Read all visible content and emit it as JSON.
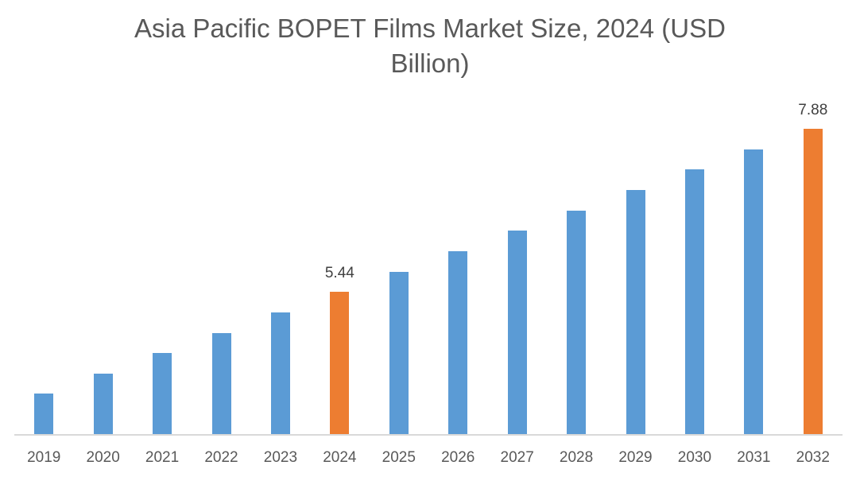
{
  "chart_data": {
    "type": "bar",
    "title": "Asia Pacific BOPET Films Market Size, 2024 (USD Billion)",
    "title_lines": [
      "Asia Pacific BOPET Films Market Size, 2024 (USD",
      "Billion)"
    ],
    "xlabel": "",
    "ylabel": "",
    "categories": [
      "2019",
      "2020",
      "2021",
      "2022",
      "2023",
      "2024",
      "2025",
      "2026",
      "2027",
      "2028",
      "2029",
      "2030",
      "2031",
      "2032"
    ],
    "values": [
      3.92,
      4.21,
      4.52,
      4.82,
      5.13,
      5.44,
      5.74,
      6.05,
      6.36,
      6.65,
      6.96,
      7.27,
      7.57,
      7.88
    ],
    "data_labels": {
      "2024": "5.44",
      "2032": "7.88"
    },
    "highlight_categories": [
      "2024",
      "2032"
    ],
    "colors": {
      "default": "#5b9bd5",
      "highlight": "#ed7d31"
    },
    "ylim": [
      3.3,
      8.6
    ],
    "grid": false,
    "legend": null
  }
}
